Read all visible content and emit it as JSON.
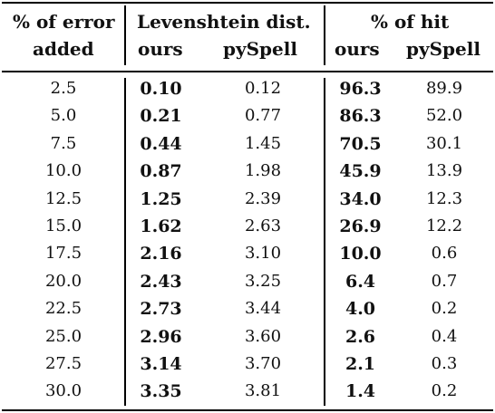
{
  "header": {
    "col0_line1": "% of error",
    "col0_line2": "added",
    "group1": "Levenshtein dist.",
    "group2": "% of hit",
    "sub_ours": "ours",
    "sub_pyspell": "pySpell"
  },
  "rows": [
    {
      "error": "2.5",
      "lev_ours": "0.10",
      "lev_py": "0.12",
      "hit_ours": "96.3",
      "hit_py": "89.9"
    },
    {
      "error": "5.0",
      "lev_ours": "0.21",
      "lev_py": "0.77",
      "hit_ours": "86.3",
      "hit_py": "52.0"
    },
    {
      "error": "7.5",
      "lev_ours": "0.44",
      "lev_py": "1.45",
      "hit_ours": "70.5",
      "hit_py": "30.1"
    },
    {
      "error": "10.0",
      "lev_ours": "0.87",
      "lev_py": "1.98",
      "hit_ours": "45.9",
      "hit_py": "13.9"
    },
    {
      "error": "12.5",
      "lev_ours": "1.25",
      "lev_py": "2.39",
      "hit_ours": "34.0",
      "hit_py": "12.3"
    },
    {
      "error": "15.0",
      "lev_ours": "1.62",
      "lev_py": "2.63",
      "hit_ours": "26.9",
      "hit_py": "12.2"
    },
    {
      "error": "17.5",
      "lev_ours": "2.16",
      "lev_py": "3.10",
      "hit_ours": "10.0",
      "hit_py": "0.6"
    },
    {
      "error": "20.0",
      "lev_ours": "2.43",
      "lev_py": "3.25",
      "hit_ours": "6.4",
      "hit_py": "0.7"
    },
    {
      "error": "22.5",
      "lev_ours": "2.73",
      "lev_py": "3.44",
      "hit_ours": "4.0",
      "hit_py": "0.2"
    },
    {
      "error": "25.0",
      "lev_ours": "2.96",
      "lev_py": "3.60",
      "hit_ours": "2.6",
      "hit_py": "0.4"
    },
    {
      "error": "27.5",
      "lev_ours": "3.14",
      "lev_py": "3.70",
      "hit_ours": "2.1",
      "hit_py": "0.3"
    },
    {
      "error": "30.0",
      "lev_ours": "3.35",
      "lev_py": "3.81",
      "hit_ours": "1.4",
      "hit_py": "0.2"
    }
  ]
}
